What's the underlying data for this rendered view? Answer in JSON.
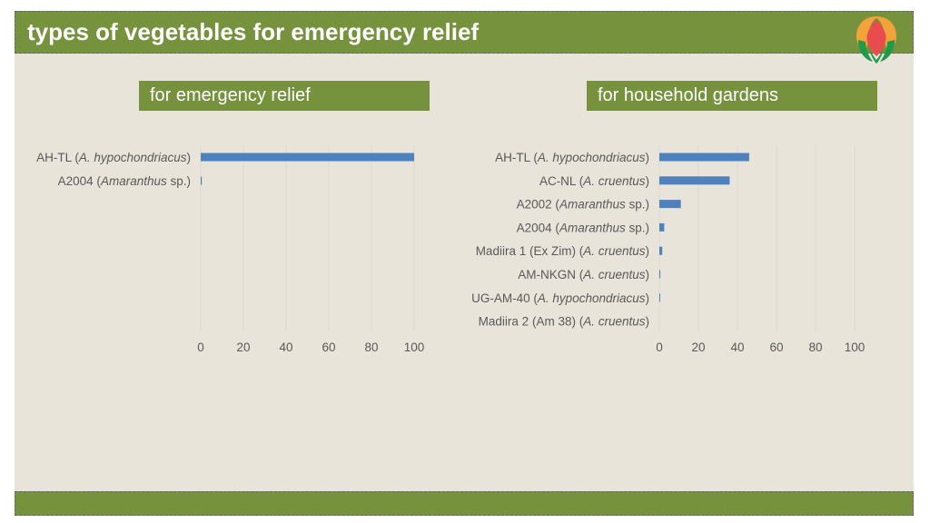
{
  "slide": {
    "title": "types of vegetables for emergency relief",
    "logo_icon": "flower-logo-icon",
    "colors": {
      "bar": "#4f81bd",
      "header": "#76923c",
      "background": "#e8e4da"
    }
  },
  "chart_data": [
    {
      "type": "bar",
      "orientation": "horizontal",
      "title": "for emergency relief",
      "categories": [
        {
          "name": "AH-TL",
          "species": "A. hypochondriacus"
        },
        {
          "name": "A2004",
          "species": "Amaranthus",
          "suffix": " sp."
        }
      ],
      "category_labels": [
        "AH-TL (A. hypochondriacus)",
        "A2004 (Amaranthus sp.)"
      ],
      "values": [
        100,
        0.5
      ],
      "xlim": [
        0,
        100
      ],
      "xticks": [
        "0",
        "20",
        "40",
        "60",
        "80",
        "100"
      ],
      "grid": true,
      "xlabel": "",
      "ylabel": ""
    },
    {
      "type": "bar",
      "orientation": "horizontal",
      "title": "for household gardens",
      "categories": [
        {
          "name": "AH-TL",
          "species": "A. hypochondriacus"
        },
        {
          "name": "AC-NL",
          "species": "A. cruentus"
        },
        {
          "name": "A2002",
          "species": "Amaranthus",
          "suffix": " sp."
        },
        {
          "name": "A2004",
          "species": "Amaranthus",
          "suffix": " sp."
        },
        {
          "name": "Madiira 1 (Ex Zim)",
          "species": "A. cruentus"
        },
        {
          "name": "AM-NKGN",
          "species": "A. cruentus"
        },
        {
          "name": "UG-AM-40",
          "species": "A. hypochondriacus"
        },
        {
          "name": "Madiira 2 (Am 38)",
          "species": "A. cruentus"
        }
      ],
      "category_labels": [
        "AH-TL (A. hypochondriacus)",
        "AC-NL (A. cruentus)",
        "A2002 (Amaranthus sp.)",
        "A2004 (Amaranthus sp.)",
        "Madiira 1 (Ex Zim) (A. cruentus)",
        "AM-NKGN (A. cruentus)",
        "UG-AM-40 (A. hypochondriacus)",
        "Madiira 2 (Am 38) (A. cruentus)"
      ],
      "values": [
        46,
        36,
        11,
        2.5,
        1.5,
        0.5,
        0.3,
        0
      ],
      "xlim": [
        0,
        100
      ],
      "xticks": [
        "0",
        "20",
        "40",
        "60",
        "80",
        "100"
      ],
      "grid": true,
      "xlabel": "",
      "ylabel": ""
    }
  ]
}
